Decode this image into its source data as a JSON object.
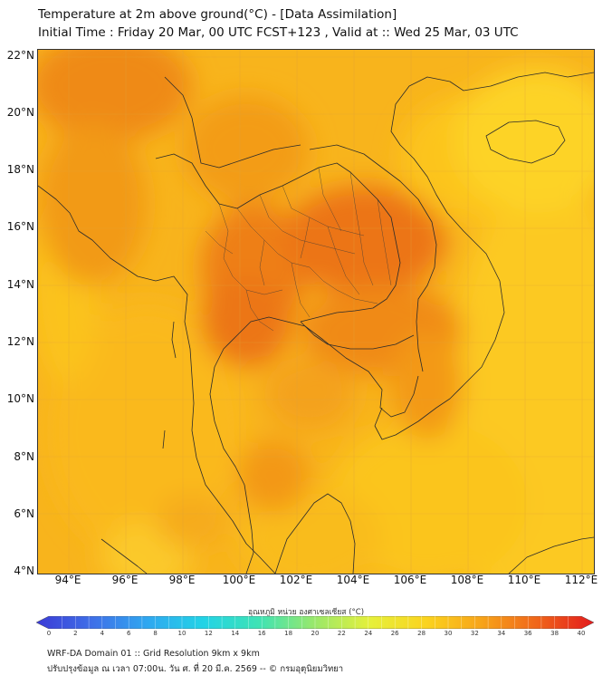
{
  "header": {
    "title_line1": "Temperature at 2m above ground(°C) - [Data Assimilation]",
    "title_line2": "Initial Time : Friday 20 Mar, 00 UTC FCST+123 , Valid at :: Wed 25 Mar, 03 UTC"
  },
  "axes": {
    "lat_labels": [
      "22°N",
      "20°N",
      "18°N",
      "16°N",
      "14°N",
      "12°N",
      "10°N",
      "8°N",
      "6°N",
      "4°N"
    ],
    "lon_labels": [
      "94°E",
      "96°E",
      "98°E",
      "100°E",
      "102°E",
      "104°E",
      "106°E",
      "108°E",
      "110°E",
      "112°E"
    ]
  },
  "colorbar": {
    "title": "อุณหภูมิ หน่วย องศาเซลเซียส (°C)",
    "tick_labels": [
      "0",
      "2",
      "4",
      "6",
      "8",
      "10",
      "12",
      "14",
      "16",
      "18",
      "20",
      "22",
      "24",
      "26",
      "28",
      "30",
      "32",
      "34",
      "36",
      "38",
      "40"
    ],
    "min": 0,
    "max": 40,
    "colors": [
      "#3b3bd6",
      "#3f6fe8",
      "#2fa8f0",
      "#22d3e6",
      "#3fe3b4",
      "#9ae86a",
      "#e6f03a",
      "#fbd31e",
      "#f7a319",
      "#f0641a",
      "#e31a1c"
    ]
  },
  "footer": {
    "line1": "WRF-DA Domain 01 :: Grid Resolution 9km x 9km",
    "line2": "ปรับปรุงข้อมูล ณ เวลา 07:00น. วัน ศ. ที่ 20 มี.ค. 2569 -- © กรมอุตุนิยมวิทยา"
  },
  "map": {
    "variable": "2m temperature",
    "dominant_range_c": [
      29,
      36
    ],
    "land_color": "#f4a11a",
    "sea_color": "#fbc21b",
    "hot_color": "#ef7a14",
    "cool_color": "#fdd52a",
    "border_color": "#2b2b2b"
  }
}
